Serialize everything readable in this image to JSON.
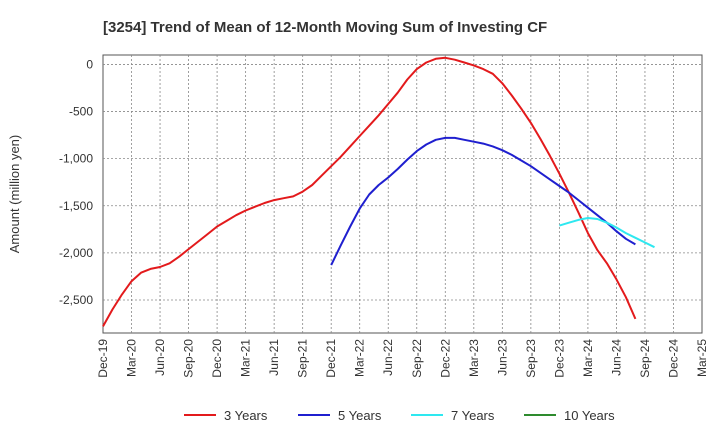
{
  "chart_data": {
    "type": "line",
    "title": "[3254]  Trend of Mean of 12-Month Moving Sum of Investing CF",
    "xlabel": "",
    "ylabel": "Amount (million yen)",
    "ylim": [
      -2850,
      100
    ],
    "yticks": [
      0,
      -500,
      -1000,
      -1500,
      -2000,
      -2500
    ],
    "ytick_labels": [
      "0",
      "-500",
      "-1,000",
      "-1,500",
      "-2,000",
      "-2,500"
    ],
    "x_categories": [
      "Dec-19",
      "Mar-20",
      "Jun-20",
      "Sep-20",
      "Dec-20",
      "Mar-21",
      "Jun-21",
      "Sep-21",
      "Dec-21",
      "Mar-22",
      "Jun-22",
      "Sep-22",
      "Dec-22",
      "Mar-23",
      "Jun-23",
      "Sep-23",
      "Dec-23",
      "Mar-24",
      "Jun-24",
      "Sep-24",
      "Dec-24",
      "Mar-25"
    ],
    "grid": true,
    "legend": "bottom",
    "series": [
      {
        "name": "3 Years",
        "color": "#e31a1c",
        "start_index": 0,
        "values": [
          -2780,
          -2600,
          -2440,
          -2300,
          -2210,
          -2170,
          -2150,
          -2110,
          -2040,
          -1960,
          -1880,
          -1800,
          -1720,
          -1660,
          -1600,
          -1550,
          -1510,
          -1470,
          -1440,
          -1420,
          -1400,
          -1350,
          -1280,
          -1180,
          -1080,
          -980,
          -870,
          -760,
          -650,
          -540,
          -420,
          -300,
          -160,
          -50,
          20,
          60,
          70,
          50,
          20,
          -10,
          -50,
          -100,
          -200,
          -330,
          -470,
          -620,
          -790,
          -970,
          -1160,
          -1360,
          -1570,
          -1790,
          -1970,
          -2110,
          -2280,
          -2470,
          -2700
        ]
      },
      {
        "name": "5 Years",
        "color": "#1f1fcf",
        "start_index": 24,
        "values": [
          -2130,
          -1920,
          -1720,
          -1530,
          -1380,
          -1280,
          -1200,
          -1110,
          -1010,
          -920,
          -850,
          -800,
          -780,
          -780,
          -800,
          -820,
          -840,
          -870,
          -910,
          -960,
          -1020,
          -1080,
          -1150,
          -1220,
          -1290,
          -1360,
          -1440,
          -1520,
          -1600,
          -1680,
          -1770,
          -1850,
          -1910
        ]
      },
      {
        "name": "7 Years",
        "color": "#2ee8f0",
        "start_index": 48,
        "values": [
          -1710,
          -1680,
          -1650,
          -1630,
          -1640,
          -1680,
          -1730,
          -1790,
          -1840,
          -1890,
          -1940
        ]
      },
      {
        "name": "10 Years",
        "color": "#2e8b2e",
        "start_index": 0,
        "values": []
      }
    ]
  }
}
